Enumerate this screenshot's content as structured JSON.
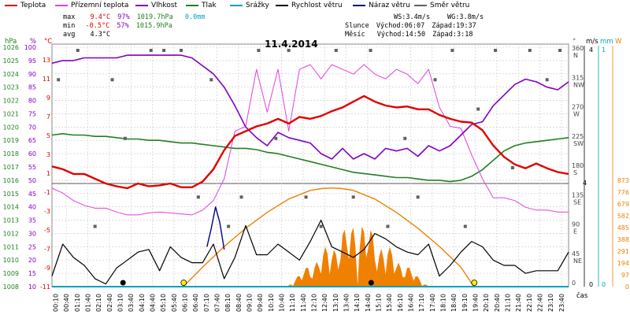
{
  "legend": [
    {
      "label": "Teplota",
      "color": "#e00000"
    },
    {
      "label": "Přízemní teplota",
      "color": "#e040e0"
    },
    {
      "label": "Vlhkost",
      "color": "#8000c0"
    },
    {
      "label": "Tlak",
      "color": "#208020"
    },
    {
      "label": "Srážky",
      "color": "#00a0c0"
    },
    {
      "label": "Rychlost větru",
      "color": "#000000"
    },
    {
      "label": "Náraz větru",
      "color": "#000080"
    },
    {
      "label": "Směr větru",
      "color": "#606060"
    }
  ],
  "stats": {
    "max_label": "max",
    "max_temp": "9.4°C",
    "max_hum": "97%",
    "max_press": "1019.7hPa",
    "rain": "0.0mm",
    "min_label": "min",
    "min_temp": "-0.5°C",
    "min_hum": "57%",
    "min_press": "1015.9hPa",
    "avg_label": "avg",
    "avg_temp": "4.3°C",
    "ws": "WS:3.4m/s",
    "wg": "WG:3.8m/s",
    "sun_label": "Slunce",
    "sunrise": "Východ:06:07",
    "sunset": "Západ:19:37",
    "moon_label": "Měsíc",
    "moonrise": "Východ:14:50",
    "moonset": "Západ:3:18"
  },
  "colors": {
    "temp": "#e00000",
    "ground": "#e040e0",
    "hum": "#8000c0",
    "press": "#208020",
    "rain": "#00a0c0",
    "wind": "#000000",
    "gust": "#000080",
    "dir": "#606060",
    "sun": "#f08000",
    "grid": "#c8c8c8"
  },
  "chart_data": {
    "type": "line",
    "title": "11.4.2014",
    "xlabel": "čas",
    "x_ticks": [
      "00:10",
      "00:40",
      "01:10",
      "01:40",
      "02:10",
      "02:40",
      "03:10",
      "03:40",
      "04:10",
      "04:40",
      "05:10",
      "05:40",
      "06:10",
      "06:40",
      "07:10",
      "07:40",
      "08:10",
      "08:40",
      "09:10",
      "09:40",
      "10:10",
      "10:40",
      "11:10",
      "11:40",
      "12:10",
      "12:40",
      "13:10",
      "13:40",
      "14:10",
      "14:40",
      "15:10",
      "15:40",
      "16:10",
      "16:40",
      "17:10",
      "17:40",
      "18:10",
      "18:40",
      "19:10",
      "19:40",
      "20:10",
      "20:40",
      "21:10",
      "21:40",
      "22:10",
      "22:40",
      "23:10",
      "23:40"
    ],
    "axes": {
      "pressure_hpa": {
        "unit": "hPa",
        "ticks": [
          1026,
          1025,
          1024,
          1023,
          1022,
          1021,
          1020,
          1019,
          1018,
          1017,
          1016,
          1015,
          1014,
          1013,
          1012,
          1011,
          1010,
          1009,
          1008
        ],
        "ylim": [
          1008,
          1026
        ]
      },
      "humidity_pct": {
        "unit": "%",
        "ticks": [
          100,
          95,
          90,
          85,
          80,
          75,
          70,
          65,
          60,
          55,
          50,
          45,
          40,
          35,
          30,
          25,
          20,
          15,
          10
        ],
        "ylim": [
          10,
          100
        ]
      },
      "temperature_c": {
        "unit": "°C",
        "ticks": [
          13,
          11,
          9,
          7,
          5,
          3,
          1,
          -1,
          -3,
          -5,
          -7,
          -9,
          -11
        ],
        "ylim": [
          -11,
          13
        ]
      },
      "direction_deg": {
        "unit": "°",
        "ticks": [
          360,
          315,
          270,
          225,
          180,
          135,
          90,
          45,
          0
        ],
        "labels": [
          "N",
          "NW",
          "W",
          "SW",
          "S",
          "SE",
          "E",
          "NE",
          ""
        ]
      },
      "wind_ms": {
        "unit": "m/s",
        "ticks": [
          1,
          0
        ],
        "ylim": [
          0,
          4
        ]
      },
      "rain_mm": {
        "unit": "mm",
        "ticks": [
          1,
          0
        ]
      },
      "solar_w": {
        "unit": "W",
        "ticks": [
          873,
          776,
          679,
          582,
          485,
          388,
          291,
          194,
          97,
          0
        ],
        "ylim": [
          0,
          873
        ]
      }
    },
    "series": [
      {
        "name": "Teplota",
        "unit": "°C",
        "x": [
          0,
          0.5,
          1,
          1.5,
          2,
          2.5,
          3,
          3.5,
          4,
          4.5,
          5,
          5.5,
          6,
          6.5,
          7,
          7.5,
          8,
          8.5,
          9,
          9.5,
          10,
          10.5,
          11,
          11.5,
          12,
          12.5,
          13,
          13.5,
          14,
          14.5,
          15,
          15.5,
          16,
          16.5,
          17,
          17.5,
          18,
          18.5,
          19,
          19.5,
          20,
          20.5,
          21,
          21.5,
          22,
          22.5,
          23,
          23.5,
          24
        ],
        "y": [
          1.8,
          1.5,
          1.0,
          1.0,
          0.5,
          0,
          -0.3,
          -0.5,
          0,
          -0.3,
          -0.2,
          0,
          -0.4,
          -0.4,
          0.2,
          1.5,
          3.5,
          5.0,
          5.5,
          6.0,
          6.3,
          6.8,
          6.3,
          7.0,
          6.8,
          7.1,
          7.6,
          8.0,
          8.6,
          9.2,
          8.6,
          8.2,
          8.0,
          8.1,
          7.8,
          7.8,
          7.2,
          6.8,
          6.5,
          6.4,
          5.6,
          4.0,
          2.8,
          2.0,
          1.6,
          2.1,
          1.6,
          1.2,
          1.0
        ]
      },
      {
        "name": "Přízemní teplota",
        "unit": "°C",
        "x": [
          0,
          0.5,
          1,
          1.5,
          2,
          2.5,
          3,
          3.5,
          4,
          4.5,
          5,
          5.5,
          6,
          6.5,
          7,
          7.5,
          8,
          8.5,
          9,
          9.5,
          10,
          10.5,
          11,
          11.5,
          12,
          12.5,
          13,
          13.5,
          14,
          14.5,
          15,
          15.5,
          16,
          16.5,
          17,
          17.5,
          18,
          18.5,
          19,
          19.5,
          20,
          20.5,
          21,
          21.5,
          22,
          22.5,
          23,
          23.5,
          24
        ],
        "y": [
          -0.5,
          -1.0,
          -1.8,
          -2.3,
          -2.6,
          -2.6,
          -3.0,
          -3.3,
          -3.3,
          -3.1,
          -3.0,
          -3.1,
          -3.2,
          -3.3,
          -2.8,
          -1.8,
          0.5,
          5.5,
          6.0,
          12.0,
          7.5,
          12.0,
          5.5,
          12.0,
          12.5,
          11.0,
          12.5,
          12.0,
          11.5,
          12.5,
          11.5,
          11.0,
          12.0,
          11.5,
          10.5,
          12.0,
          8.0,
          6.0,
          5.8,
          3.0,
          0.5,
          -1.5,
          -1.5,
          -1.8,
          -2.5,
          -2.8,
          -2.8,
          -3.0,
          -3.0
        ]
      },
      {
        "name": "Vlhkost",
        "unit": "%",
        "x": [
          0,
          0.5,
          1,
          1.5,
          2,
          2.5,
          3,
          3.5,
          4,
          4.5,
          5,
          5.5,
          6,
          6.5,
          7,
          7.5,
          8,
          8.5,
          9,
          9.5,
          10,
          10.5,
          11,
          11.5,
          12,
          12.5,
          13,
          13.5,
          14,
          14.5,
          15,
          15.5,
          16,
          16.5,
          17,
          17.5,
          18,
          18.5,
          19,
          19.5,
          20,
          20.5,
          21,
          21.5,
          22,
          22.5,
          23,
          23.5,
          24
        ],
        "y": [
          94,
          95,
          95,
          96,
          96,
          96,
          96,
          97,
          97,
          97,
          97,
          97,
          97,
          96,
          93,
          90,
          85,
          78,
          70,
          66,
          63,
          68,
          66,
          65,
          64,
          60,
          58,
          62,
          58,
          60,
          58,
          62,
          61,
          62,
          59,
          63,
          61,
          63,
          67,
          71,
          72,
          78,
          82,
          86,
          88,
          87,
          85,
          84,
          87
        ]
      },
      {
        "name": "Tlak",
        "unit": "hPa",
        "x": [
          0,
          0.5,
          1,
          1.5,
          2,
          2.5,
          3,
          3.5,
          4,
          4.5,
          5,
          5.5,
          6,
          6.5,
          7,
          7.5,
          8,
          8.5,
          9,
          9.5,
          10,
          10.5,
          11,
          11.5,
          12,
          12.5,
          13,
          13.5,
          14,
          14.5,
          15,
          15.5,
          16,
          16.5,
          17,
          17.5,
          18,
          18.5,
          19,
          19.5,
          20,
          20.5,
          21,
          21.5,
          22,
          22.5,
          23,
          23.5,
          24
        ],
        "y": [
          1019.4,
          1019.5,
          1019.4,
          1019.4,
          1019.3,
          1019.3,
          1019.2,
          1019.1,
          1019.1,
          1019.0,
          1019.0,
          1018.9,
          1018.8,
          1018.8,
          1018.7,
          1018.6,
          1018.5,
          1018.4,
          1018.4,
          1018.3,
          1018.1,
          1018.0,
          1017.8,
          1017.6,
          1017.4,
          1017.2,
          1017.0,
          1016.8,
          1016.6,
          1016.5,
          1016.4,
          1016.3,
          1016.2,
          1016.2,
          1016.1,
          1016.0,
          1016.0,
          1015.9,
          1016.0,
          1016.3,
          1016.8,
          1017.5,
          1018.2,
          1018.6,
          1018.8,
          1018.9,
          1019.0,
          1019.1,
          1019.2
        ]
      },
      {
        "name": "Rychlost větru",
        "unit": "m/s",
        "x": [
          0,
          0.5,
          1,
          1.5,
          2,
          2.5,
          3,
          3.5,
          4,
          4.5,
          5,
          5.5,
          6,
          6.5,
          7,
          7.5,
          8,
          8.5,
          9,
          9.5,
          10,
          10.5,
          11,
          11.5,
          12,
          12.5,
          13,
          13.5,
          14,
          14.5,
          15,
          15.5,
          16,
          16.5,
          17,
          17.5,
          18,
          18.5,
          19,
          19.5,
          20,
          20.5,
          21,
          21.5,
          22,
          22.5,
          23,
          23.5,
          24
        ],
        "y": [
          0.4,
          1.6,
          1.1,
          0.8,
          0.3,
          0.1,
          0.7,
          1.0,
          1.3,
          1.4,
          0.6,
          1.5,
          1.1,
          0.9,
          0.9,
          1.6,
          0.3,
          1.1,
          2.3,
          1.2,
          1.2,
          1.6,
          1.3,
          1.0,
          1.7,
          2.5,
          1.5,
          1.3,
          1.1,
          1.4,
          2.0,
          1.8,
          1.5,
          1.3,
          1.2,
          1.6,
          0.4,
          0.8,
          1.3,
          1.7,
          1.5,
          1.0,
          0.8,
          0.8,
          0.5,
          0.6,
          0.6,
          0.6,
          1.3
        ]
      },
      {
        "name": "Náraz větru",
        "unit": "m/s",
        "x": [
          7.2,
          7.4,
          7.6,
          7.8,
          8.0
        ],
        "y": [
          1.5,
          2.2,
          3.0,
          2.4,
          1.4
        ]
      },
      {
        "name": "Směr větru",
        "unit": "°",
        "x": [
          0.3,
          1.2,
          2.0,
          2.8,
          3.4,
          4.6,
          5.2,
          6.0,
          6.8,
          7.4,
          8.2,
          8.8,
          9.6,
          10.4,
          11.0,
          11.8,
          12.5,
          13.2,
          14.0,
          14.8,
          15.6,
          16.4,
          17.0,
          17.8,
          18.6,
          19.2,
          19.8,
          20.6,
          21.4,
          22.2,
          23.0,
          23.6
        ],
        "y": [
          315,
          360,
          90,
          315,
          225,
          360,
          360,
          360,
          135,
          315,
          90,
          135,
          360,
          225,
          360,
          135,
          90,
          360,
          135,
          360,
          90,
          225,
          135,
          315,
          360,
          90,
          270,
          360,
          180,
          360,
          315,
          360
        ]
      },
      {
        "name": "Sluneční záření",
        "unit": "W",
        "x": [
          6.1,
          7,
          8,
          9,
          10,
          11,
          12,
          12.5,
          13,
          13.5,
          14,
          15,
          16,
          17,
          18,
          19,
          19.6
        ],
        "y": [
          0,
          160,
          330,
          480,
          610,
          720,
          790,
          805,
          810,
          805,
          790,
          720,
          610,
          480,
          330,
          160,
          0
        ]
      },
      {
        "name": "Srážky",
        "unit": "mm",
        "x": [
          0,
          24
        ],
        "y": [
          0,
          0
        ]
      }
    ]
  }
}
